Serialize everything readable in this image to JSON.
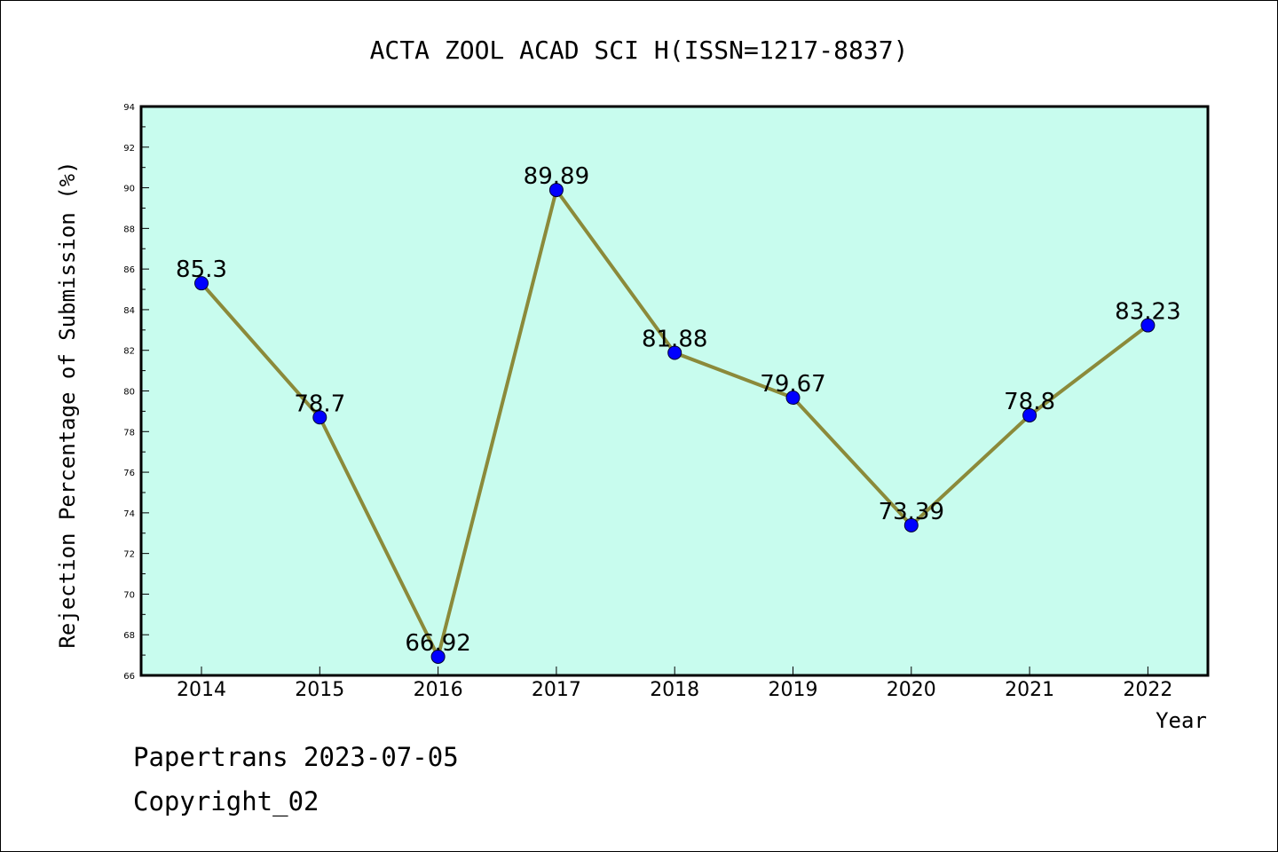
{
  "chart_data": {
    "type": "line",
    "title": "ACTA ZOOL ACAD SCI H(ISSN=1217-8837)",
    "xlabel": "Year",
    "ylabel": "Rejection Percentage of Submission (%)",
    "categories": [
      "2014",
      "2015",
      "2016",
      "2017",
      "2018",
      "2019",
      "2020",
      "2021",
      "2022"
    ],
    "values": [
      85.3,
      78.7,
      66.92,
      89.89,
      81.88,
      79.67,
      73.39,
      78.8,
      83.23
    ],
    "data_labels": [
      "85.3",
      "78.7",
      "66.92",
      "89.89",
      "81.88",
      "79.67",
      "73.39",
      "78.8",
      "83.23"
    ],
    "ylim": [
      66,
      94
    ],
    "yticks": [
      66,
      68,
      70,
      72,
      74,
      76,
      78,
      80,
      82,
      84,
      86,
      88,
      90,
      92,
      94
    ],
    "grid": false,
    "colors": {
      "plot_background": "#c8fcee",
      "line": "#8b8a3a",
      "marker": "#0000ff"
    }
  },
  "footer": {
    "source": "Papertrans 2023-07-05",
    "copyright": "Copyright_02"
  }
}
